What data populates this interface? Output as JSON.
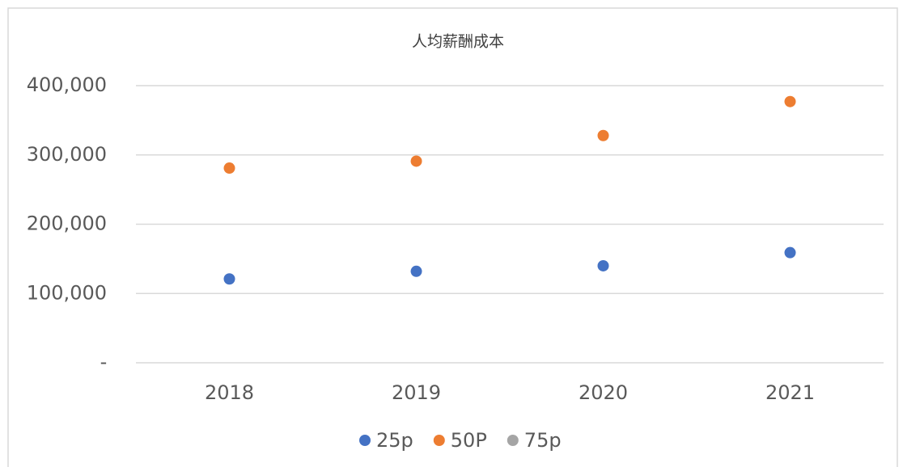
{
  "chart_data": {
    "type": "scatter",
    "title": "人均薪酬成本",
    "categories": [
      "2018",
      "2019",
      "2020",
      "2021"
    ],
    "series": [
      {
        "name": "25p",
        "color": "#4472c4",
        "values": [
          121000,
          132000,
          140000,
          159000
        ]
      },
      {
        "name": "50P",
        "color": "#ed7d31",
        "values": [
          281000,
          291000,
          328000,
          377000
        ]
      },
      {
        "name": "75p",
        "color": "#a5a5a5",
        "values": [
          null,
          null,
          null,
          null
        ]
      }
    ],
    "ylim": [
      0,
      400000
    ],
    "yticks": [
      {
        "value": 0,
        "label": "-"
      },
      {
        "value": 100000,
        "label": "100,000"
      },
      {
        "value": 200000,
        "label": "200,000"
      },
      {
        "value": 300000,
        "label": "300,000"
      },
      {
        "value": 400000,
        "label": "400,000"
      }
    ],
    "grid": true,
    "legend": "bottom"
  }
}
